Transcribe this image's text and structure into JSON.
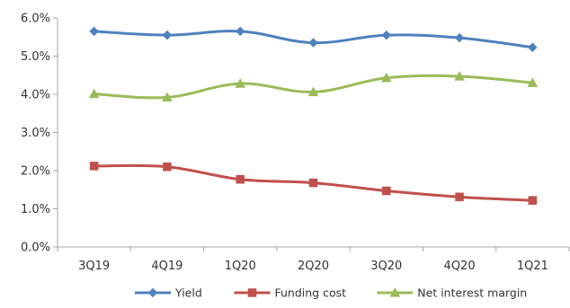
{
  "chart_data": {
    "type": "line",
    "title": "",
    "xlabel": "",
    "ylabel": "",
    "categories": [
      "3Q19",
      "4Q19",
      "1Q20",
      "2Q20",
      "3Q20",
      "4Q20",
      "1Q21"
    ],
    "y_ticks": [
      "0.0%",
      "1.0%",
      "2.0%",
      "3.0%",
      "4.0%",
      "5.0%",
      "6.0%"
    ],
    "ylim": [
      0,
      6
    ],
    "grid": false,
    "legend_position": "bottom",
    "series": [
      {
        "name": "Yield",
        "values": [
          5.65,
          5.55,
          5.65,
          5.35,
          5.55,
          5.48,
          5.23
        ],
        "color": "#4f81bd",
        "marker": "diamond"
      },
      {
        "name": "Funding cost",
        "values": [
          2.12,
          2.1,
          1.77,
          1.68,
          1.47,
          1.31,
          1.22
        ],
        "color": "#c0504d",
        "marker": "square"
      },
      {
        "name": "Net interest margin",
        "values": [
          4.01,
          3.92,
          4.28,
          4.06,
          4.43,
          4.47,
          4.3
        ],
        "color": "#9bbb59",
        "marker": "triangle"
      }
    ]
  }
}
